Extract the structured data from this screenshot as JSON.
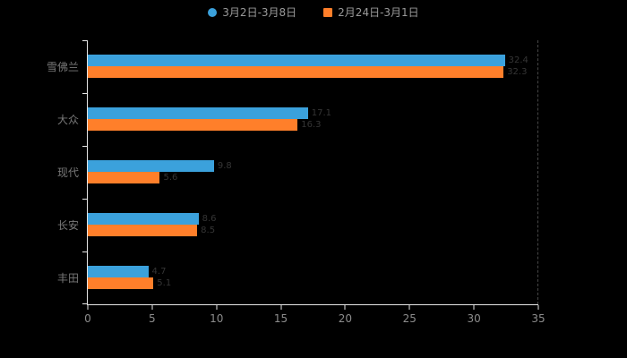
{
  "colors": {
    "background": "#000000",
    "axis_line": "#e6e6e6",
    "tick_label": "#8c8c8c",
    "category_label": "#787878",
    "legend_label": "#9a9a9a",
    "series_blue": "#3ba1dc",
    "series_orange": "#ff7f2a"
  },
  "legend": {
    "items": [
      {
        "label": "3月2日-3月8日",
        "color": "#3ba1dc",
        "marker": "circle-icon"
      },
      {
        "label": "2月24日-3月1日",
        "color": "#ff7f2a",
        "marker": "square-icon"
      }
    ]
  },
  "chart_data": {
    "type": "bar",
    "orientation": "horizontal",
    "title": "",
    "xlabel": "",
    "ylabel": "",
    "categories": [
      "雪佛兰",
      "大众",
      "现代",
      "长安",
      "丰田"
    ],
    "series": [
      {
        "name": "3月2日-3月8日",
        "color": "#3ba1dc",
        "values": [
          32.4,
          17.1,
          9.8,
          8.6,
          4.7
        ]
      },
      {
        "name": "2月24日-3月1日",
        "color": "#ff7f2a",
        "values": [
          32.3,
          16.3,
          5.6,
          8.5,
          5.1
        ]
      }
    ],
    "xlim": [
      0,
      35
    ],
    "xticks": [
      0,
      5,
      10,
      15,
      20,
      25,
      30,
      35
    ],
    "grid": false,
    "legend_position": "top"
  }
}
